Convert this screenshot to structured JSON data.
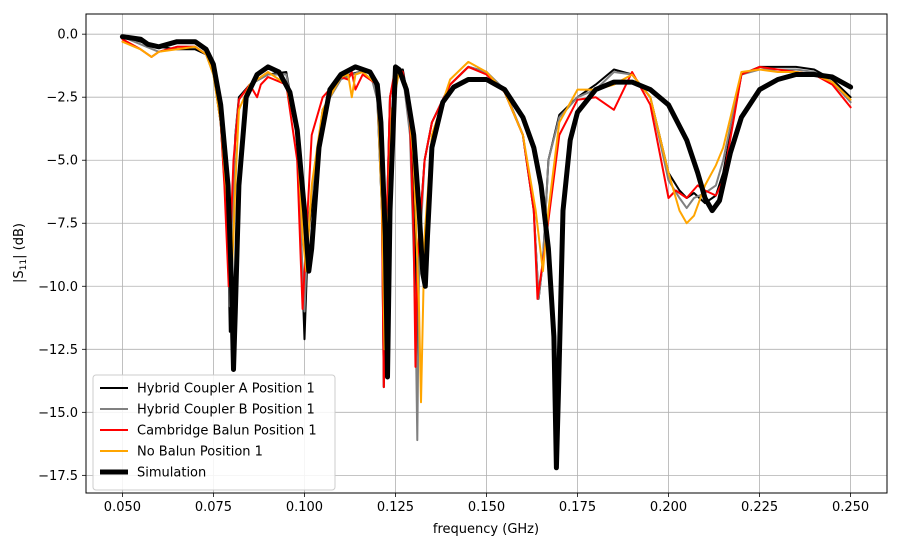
{
  "chart_data": {
    "type": "line",
    "xlabel": "frequency (GHz)",
    "ylabel": "|S11| (dB)",
    "xlim": [
      0.04,
      0.26
    ],
    "ylim": [
      -18.2,
      0.8
    ],
    "xticks": [
      0.05,
      0.075,
      0.1,
      0.125,
      0.15,
      0.175,
      0.2,
      0.225,
      0.25
    ],
    "xtick_labels": [
      "0.050",
      "0.075",
      "0.100",
      "0.125",
      "0.150",
      "0.175",
      "0.200",
      "0.225",
      "0.250"
    ],
    "yticks": [
      0,
      -2.5,
      -5,
      -7.5,
      -10,
      -12.5,
      -15,
      -17.5
    ],
    "ytick_labels": [
      "0.0",
      "−2.5",
      "−5.0",
      "−7.5",
      "−10.0",
      "−12.5",
      "−15.0",
      "−17.5"
    ],
    "grid": true,
    "legend_position": "bottom-left",
    "series": [
      {
        "name": "Hybrid Coupler A Position 1",
        "color": "#000000",
        "x": [
          0.05,
          0.055,
          0.06,
          0.065,
          0.07,
          0.073,
          0.075,
          0.077,
          0.079,
          0.0795,
          0.08,
          0.0805,
          0.081,
          0.082,
          0.085,
          0.09,
          0.095,
          0.098,
          0.0995,
          0.1,
          0.101,
          0.105,
          0.11,
          0.115,
          0.118,
          0.12,
          0.1213,
          0.1218,
          0.1225,
          0.1235,
          0.125,
          0.127,
          0.129,
          0.1305,
          0.131,
          0.1315,
          0.133,
          0.135,
          0.14,
          0.145,
          0.15,
          0.155,
          0.16,
          0.163,
          0.1643,
          0.1655,
          0.167,
          0.17,
          0.175,
          0.18,
          0.185,
          0.19,
          0.195,
          0.2,
          0.203,
          0.205,
          0.207,
          0.21,
          0.213,
          0.215,
          0.22,
          0.225,
          0.23,
          0.235,
          0.24,
          0.245,
          0.25
        ],
        "y": [
          -0.1,
          -0.3,
          -0.5,
          -0.6,
          -0.6,
          -0.8,
          -1.5,
          -3.5,
          -8,
          -11.8,
          -10,
          -6,
          -4,
          -2.5,
          -2,
          -1.6,
          -1.5,
          -4,
          -10,
          -12.1,
          -8,
          -3,
          -1.7,
          -1.5,
          -1.5,
          -2.5,
          -7,
          -14,
          -8,
          -2.5,
          -1.5,
          -1.4,
          -3,
          -9,
          -12.8,
          -8,
          -5,
          -3.5,
          -2,
          -1.3,
          -1.5,
          -2.3,
          -4,
          -7,
          -10.5,
          -9,
          -5,
          -3.2,
          -2.5,
          -2,
          -1.4,
          -1.6,
          -2.5,
          -5.5,
          -6.2,
          -6.5,
          -6.3,
          -6.7,
          -6.4,
          -5.5,
          -1.6,
          -1.3,
          -1.3,
          -1.3,
          -1.4,
          -1.8,
          -2.5
        ]
      },
      {
        "name": "Hybrid Coupler B Position 1",
        "color": "#808080",
        "x": [
          0.05,
          0.055,
          0.06,
          0.065,
          0.07,
          0.073,
          0.075,
          0.077,
          0.079,
          0.0795,
          0.08,
          0.0805,
          0.081,
          0.082,
          0.085,
          0.09,
          0.095,
          0.098,
          0.0995,
          0.1,
          0.101,
          0.105,
          0.11,
          0.115,
          0.118,
          0.12,
          0.1213,
          0.1218,
          0.1225,
          0.1235,
          0.125,
          0.127,
          0.129,
          0.1305,
          0.131,
          0.1315,
          0.133,
          0.135,
          0.14,
          0.145,
          0.15,
          0.155,
          0.16,
          0.163,
          0.1643,
          0.1655,
          0.167,
          0.17,
          0.175,
          0.18,
          0.185,
          0.19,
          0.195,
          0.2,
          0.203,
          0.205,
          0.207,
          0.21,
          0.213,
          0.215,
          0.22,
          0.225,
          0.23,
          0.235,
          0.24,
          0.245,
          0.25
        ],
        "y": [
          -0.1,
          -0.4,
          -0.7,
          -0.5,
          -0.5,
          -0.8,
          -1.6,
          -3.5,
          -8,
          -10.8,
          -9.5,
          -6,
          -4,
          -2.6,
          -2,
          -1.6,
          -1.6,
          -4,
          -9.5,
          -11,
          -7.5,
          -3,
          -1.8,
          -1.5,
          -1.5,
          -2.6,
          -7,
          -13.5,
          -8,
          -2.5,
          -1.5,
          -1.6,
          -4,
          -11,
          -16.1,
          -9,
          -5,
          -3.5,
          -2,
          -1.3,
          -1.5,
          -2.2,
          -4,
          -7,
          -10.5,
          -9,
          -5,
          -3.3,
          -2.5,
          -2.2,
          -1.5,
          -1.6,
          -2.5,
          -5.8,
          -6.5,
          -6.9,
          -6.5,
          -6.3,
          -6,
          -5,
          -1.6,
          -1.4,
          -1.4,
          -1.4,
          -1.5,
          -1.9,
          -2.7
        ]
      },
      {
        "name": "Cambridge Balun Position 1",
        "color": "#ff0000",
        "x": [
          0.05,
          0.055,
          0.058,
          0.06,
          0.065,
          0.07,
          0.073,
          0.075,
          0.077,
          0.078,
          0.0792,
          0.0797,
          0.0805,
          0.082,
          0.085,
          0.087,
          0.088,
          0.09,
          0.095,
          0.098,
          0.099,
          0.0995,
          0.1005,
          0.102,
          0.105,
          0.11,
          0.112,
          0.113,
          0.114,
          0.116,
          0.12,
          0.1212,
          0.1218,
          0.1225,
          0.1235,
          0.125,
          0.127,
          0.129,
          0.13,
          0.1305,
          0.131,
          0.133,
          0.135,
          0.14,
          0.145,
          0.15,
          0.155,
          0.16,
          0.163,
          0.164,
          0.166,
          0.17,
          0.175,
          0.18,
          0.185,
          0.19,
          0.195,
          0.2,
          0.202,
          0.205,
          0.208,
          0.21,
          0.213,
          0.215,
          0.22,
          0.225,
          0.23,
          0.235,
          0.24,
          0.245,
          0.25
        ],
        "y": [
          -0.2,
          -0.6,
          -0.9,
          -0.7,
          -0.5,
          -0.5,
          -0.8,
          -1.5,
          -3.5,
          -6,
          -10,
          -8,
          -5,
          -2.6,
          -2,
          -2.5,
          -2,
          -1.7,
          -2,
          -5,
          -9,
          -10.9,
          -8,
          -4,
          -2.5,
          -1.7,
          -1.8,
          -1.5,
          -2.2,
          -1.6,
          -2,
          -6,
          -14,
          -8,
          -2.5,
          -1.3,
          -1.5,
          -3.5,
          -8,
          -13.2,
          -9,
          -5,
          -3.5,
          -2,
          -1.3,
          -1.6,
          -2.3,
          -4,
          -7,
          -10.5,
          -8.5,
          -4,
          -2.6,
          -2.5,
          -3,
          -1.5,
          -2.8,
          -6.5,
          -6.2,
          -6.5,
          -6,
          -6.2,
          -6.4,
          -5.8,
          -1.6,
          -1.3,
          -1.4,
          -1.5,
          -1.6,
          -2,
          -2.9
        ]
      },
      {
        "name": "No Balun Position 1",
        "color": "#ffa500",
        "x": [
          0.05,
          0.055,
          0.058,
          0.06,
          0.065,
          0.07,
          0.073,
          0.075,
          0.077,
          0.079,
          0.08,
          0.0805,
          0.081,
          0.082,
          0.085,
          0.09,
          0.093,
          0.095,
          0.098,
          0.0995,
          0.1005,
          0.102,
          0.105,
          0.11,
          0.112,
          0.113,
          0.114,
          0.116,
          0.12,
          0.1213,
          0.122,
          0.1228,
          0.124,
          0.126,
          0.128,
          0.13,
          0.1315,
          0.132,
          0.133,
          0.135,
          0.14,
          0.145,
          0.15,
          0.155,
          0.16,
          0.1635,
          0.1655,
          0.167,
          0.17,
          0.175,
          0.18,
          0.185,
          0.19,
          0.195,
          0.2,
          0.203,
          0.205,
          0.207,
          0.21,
          0.213,
          0.215,
          0.22,
          0.225,
          0.23,
          0.235,
          0.24,
          0.245,
          0.25
        ],
        "y": [
          -0.3,
          -0.6,
          -0.9,
          -0.7,
          -0.6,
          -0.5,
          -0.8,
          -1.6,
          -3.5,
          -7,
          -9.5,
          -8,
          -6,
          -3,
          -2,
          -1.5,
          -1.8,
          -2,
          -4,
          -8,
          -9.4,
          -6,
          -3,
          -1.7,
          -1.6,
          -2.5,
          -1.6,
          -1.5,
          -2,
          -7,
          -12.5,
          -8,
          -3,
          -1.5,
          -2,
          -5,
          -11,
          -14.6,
          -8,
          -4,
          -1.8,
          -1.1,
          -1.5,
          -2.3,
          -4,
          -7,
          -9.4,
          -7,
          -3.5,
          -2.2,
          -2.2,
          -2,
          -1.6,
          -2.5,
          -5.5,
          -7,
          -7.5,
          -7.2,
          -6,
          -5.2,
          -4.5,
          -1.5,
          -1.4,
          -1.5,
          -1.5,
          -1.6,
          -1.9,
          -2.6
        ]
      },
      {
        "name": "Simulation",
        "color": "#000000",
        "thick": true,
        "x": [
          0.05,
          0.055,
          0.057,
          0.06,
          0.065,
          0.07,
          0.073,
          0.075,
          0.077,
          0.079,
          0.08,
          0.0805,
          0.081,
          0.082,
          0.084,
          0.087,
          0.09,
          0.093,
          0.096,
          0.098,
          0.1,
          0.1012,
          0.102,
          0.104,
          0.107,
          0.11,
          0.114,
          0.118,
          0.12,
          0.121,
          0.1222,
          0.1228,
          0.1235,
          0.125,
          0.126,
          0.128,
          0.13,
          0.1315,
          0.1325,
          0.1332,
          0.1338,
          0.135,
          0.138,
          0.141,
          0.145,
          0.15,
          0.155,
          0.16,
          0.163,
          0.165,
          0.167,
          0.1685,
          0.1692,
          0.1698,
          0.171,
          0.173,
          0.175,
          0.18,
          0.185,
          0.19,
          0.195,
          0.2,
          0.205,
          0.208,
          0.21,
          0.212,
          0.214,
          0.217,
          0.22,
          0.225,
          0.23,
          0.235,
          0.24,
          0.245,
          0.25
        ],
        "y": [
          -0.1,
          -0.2,
          -0.4,
          -0.5,
          -0.3,
          -0.3,
          -0.6,
          -1.2,
          -2.8,
          -6,
          -10,
          -13.3,
          -11,
          -6,
          -2.5,
          -1.6,
          -1.3,
          -1.5,
          -2.3,
          -3.8,
          -7,
          -9.4,
          -8.5,
          -4.5,
          -2.2,
          -1.6,
          -1.3,
          -1.5,
          -2,
          -3.5,
          -8,
          -13.6,
          -7,
          -1.3,
          -1.4,
          -2.2,
          -4,
          -7,
          -9.5,
          -10,
          -8,
          -4.5,
          -2.7,
          -2.1,
          -1.8,
          -1.8,
          -2.2,
          -3.3,
          -4.5,
          -6,
          -8.5,
          -12,
          -17.2,
          -14,
          -7,
          -4.2,
          -3.1,
          -2.2,
          -1.9,
          -1.9,
          -2.2,
          -2.8,
          -4.2,
          -5.5,
          -6.5,
          -7,
          -6.6,
          -4.7,
          -3.3,
          -2.2,
          -1.8,
          -1.6,
          -1.6,
          -1.7,
          -2.1
        ]
      }
    ]
  }
}
